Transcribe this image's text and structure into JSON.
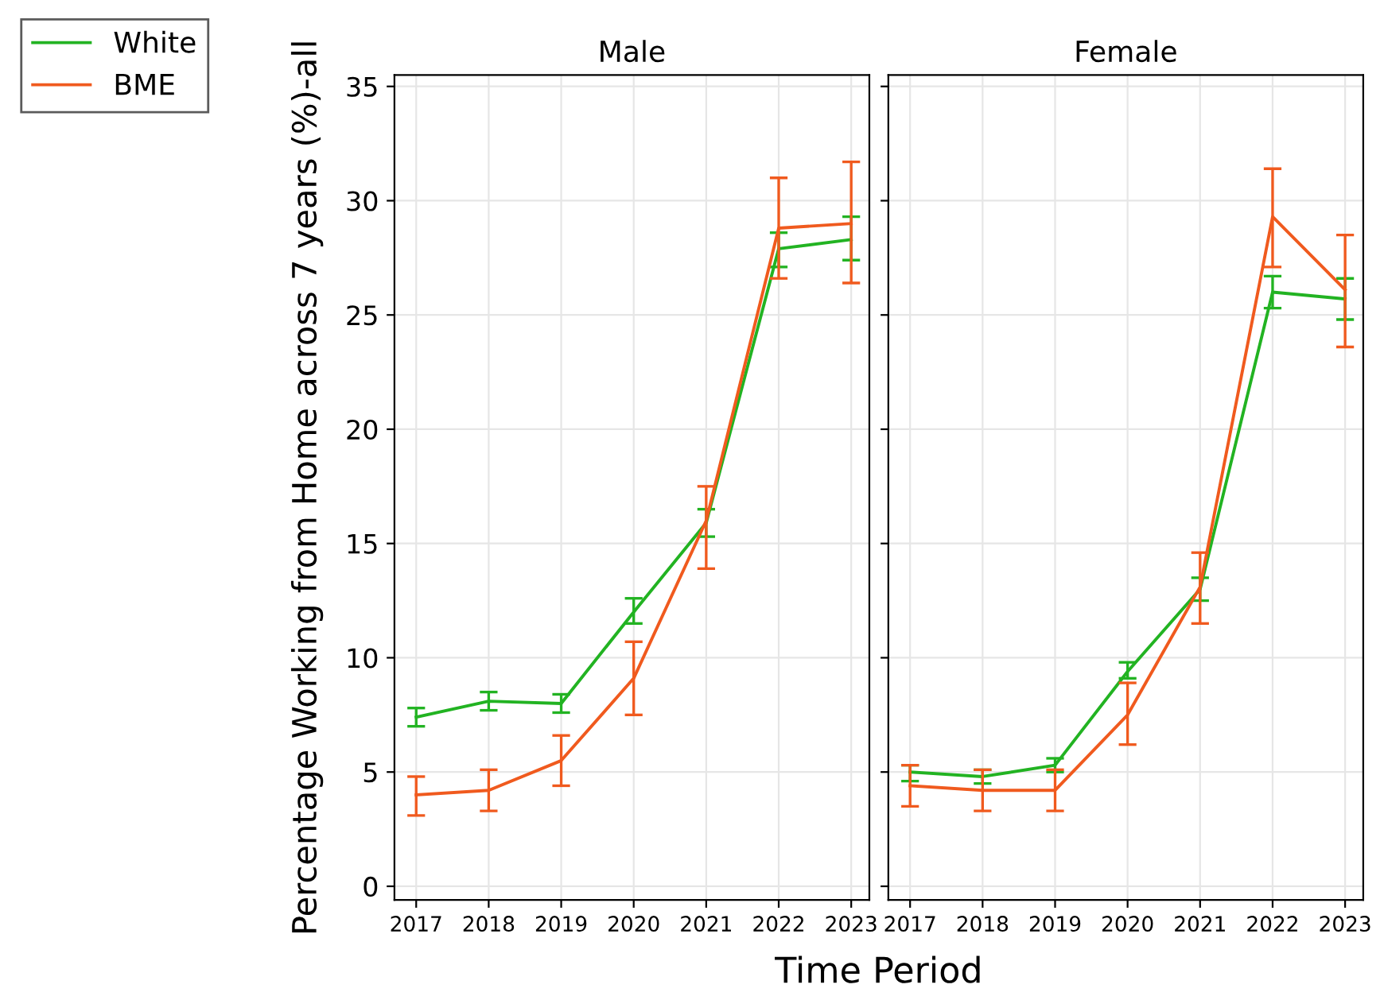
{
  "chart_data": [
    {
      "type": "line",
      "title": "Male",
      "ylabel": "Percentage Working from Home across 7 years (%)-all",
      "xlabel": "Time Period",
      "categories": [
        "2017",
        "2018",
        "2019",
        "2020",
        "2021",
        "2022",
        "2023"
      ],
      "series": [
        {
          "name": "White",
          "color": "#22b322",
          "values": [
            7.4,
            8.1,
            8.0,
            12.0,
            15.9,
            27.9,
            28.3
          ],
          "errors": [
            [
              7.0,
              7.8
            ],
            [
              7.7,
              8.5
            ],
            [
              7.6,
              8.4
            ],
            [
              11.5,
              12.6
            ],
            [
              15.3,
              16.5
            ],
            [
              27.1,
              28.6
            ],
            [
              27.4,
              29.3
            ]
          ]
        },
        {
          "name": "BME",
          "color": "#f05a1e",
          "values": [
            4.0,
            4.2,
            5.5,
            9.1,
            16.0,
            28.8,
            29.0
          ],
          "errors": [
            [
              3.1,
              4.8
            ],
            [
              3.3,
              5.1
            ],
            [
              4.4,
              6.6
            ],
            [
              7.5,
              10.7
            ],
            [
              13.9,
              17.5
            ],
            [
              26.6,
              31.0
            ],
            [
              26.4,
              31.7
            ]
          ]
        }
      ],
      "ylim": [
        -0.6,
        35.5
      ],
      "yticks": [
        0,
        5,
        10,
        15,
        20,
        25,
        30,
        35
      ],
      "grid": true,
      "legend": "top left"
    },
    {
      "type": "line",
      "title": "Female",
      "categories": [
        "2017",
        "2018",
        "2019",
        "2020",
        "2021",
        "2022",
        "2023"
      ],
      "series": [
        {
          "color": "#22b322",
          "values": [
            5.0,
            4.8,
            5.3,
            9.4,
            13.0,
            26.0,
            25.7
          ],
          "errors": [
            [
              4.6,
              5.3
            ],
            [
              4.5,
              5.1
            ],
            [
              5.0,
              5.6
            ],
            [
              9.1,
              9.8
            ],
            [
              12.5,
              13.5
            ],
            [
              25.3,
              26.7
            ],
            [
              24.8,
              26.6
            ]
          ]
        },
        {
          "color": "#f05a1e",
          "values": [
            4.4,
            4.2,
            4.2,
            7.5,
            13.1,
            29.3,
            26.1
          ],
          "errors": [
            [
              3.5,
              5.3
            ],
            [
              3.3,
              5.1
            ],
            [
              3.3,
              5.1
            ],
            [
              6.2,
              8.9
            ],
            [
              11.5,
              14.6
            ],
            [
              27.1,
              31.4
            ],
            [
              23.6,
              28.5
            ]
          ]
        }
      ],
      "ylim": [
        -0.6,
        35.5
      ],
      "yticks": [
        0,
        5,
        10,
        15,
        20,
        25,
        30,
        35
      ],
      "grid": true,
      "tick_labels": "x"
    }
  ]
}
